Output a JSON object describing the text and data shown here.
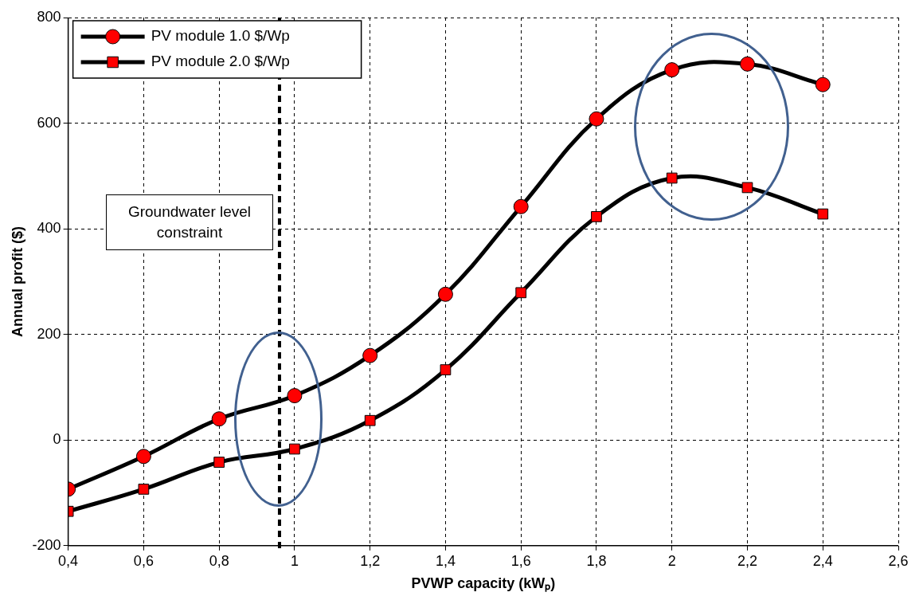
{
  "chart_data": {
    "type": "line",
    "xlabel": "PVWP capacity (kWₚ)",
    "ylabel": "Annual profit ($)",
    "x": [
      0.4,
      0.6,
      0.8,
      1.0,
      1.2,
      1.4,
      1.6,
      1.8,
      2.0,
      2.2,
      2.4
    ],
    "series": [
      {
        "name": "PV module 1.0 $/Wp",
        "color": "#ff0000",
        "marker": "circle",
        "values": [
          -93,
          -31,
          40,
          84,
          160,
          276,
          442,
          608,
          701,
          712,
          673
        ]
      },
      {
        "name": "PV module 2.0 $/Wp",
        "color": "#ff0000",
        "marker": "square",
        "values": [
          -135,
          -93,
          -42,
          -17,
          37,
          133,
          279,
          423,
          496,
          478,
          428
        ]
      }
    ],
    "xlim": [
      0.4,
      2.6
    ],
    "xticks": [
      {
        "value": 0.4,
        "label": "0,4"
      },
      {
        "value": 0.6,
        "label": "0,6"
      },
      {
        "value": 0.8,
        "label": "0,8"
      },
      {
        "value": 1,
        "label": "1"
      },
      {
        "value": 1.2,
        "label": "1,2"
      },
      {
        "value": 1.4,
        "label": "1,4"
      },
      {
        "value": 1.6,
        "label": "1,6"
      },
      {
        "value": 1.8,
        "label": "1,8"
      },
      {
        "value": 2,
        "label": "2"
      },
      {
        "value": 2.2,
        "label": "2,2"
      },
      {
        "value": 2.4,
        "label": "2,4"
      },
      {
        "value": 2.6,
        "label": "2,6"
      }
    ],
    "ylim": [
      -200,
      800
    ],
    "yticks": [
      -200,
      0,
      200,
      400,
      600,
      800
    ],
    "grid": true,
    "legend": "top left",
    "line_style": "solid",
    "ref_lines": [
      {
        "axis": "x",
        "value": 0.96,
        "color": "#000000",
        "line_style": "dashed"
      }
    ],
    "annotations": [
      "Groundwater level constraint"
    ]
  }
}
